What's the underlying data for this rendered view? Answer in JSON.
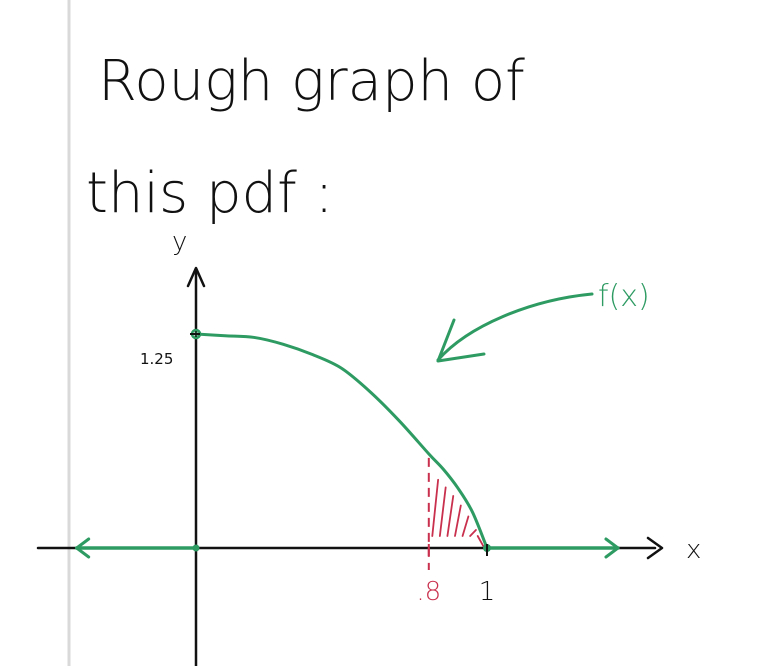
{
  "note": {
    "line1": "Rough graph of",
    "line2": "this pdf :"
  },
  "colors": {
    "ink": "#111111",
    "curve": "#2e9b63",
    "shade": "#c9304d",
    "margin_line": "#d9d9d9"
  },
  "chart_data": {
    "type": "line",
    "title": "",
    "xlabel": "x",
    "ylabel": "y",
    "xlim": [
      -0.61,
      1.6
    ],
    "ylim": [
      0,
      1.36
    ],
    "series": [
      {
        "name": "f(x)",
        "x": [
          0,
          0.1,
          0.2,
          0.3,
          0.4,
          0.5,
          0.6,
          0.7,
          0.8,
          0.85,
          0.9,
          0.95,
          1.0
        ],
        "y": [
          1.25,
          1.24,
          1.23,
          1.19,
          1.13,
          1.05,
          0.91,
          0.74,
          0.55,
          0.46,
          0.35,
          0.21,
          0
        ]
      }
    ],
    "zero_left_x": [
      -0.41,
      0
    ],
    "zero_right_x": [
      1.0,
      1.45
    ],
    "shaded_region": {
      "from": 0.8,
      "to": 1.0
    },
    "y_tick": {
      "value": 1.25,
      "label": "1.25"
    },
    "x_ticks": [
      {
        "value": 0.8,
        "label": ".8",
        "color": "#c9304d"
      },
      {
        "value": 1,
        "label": "1",
        "color": "#111111"
      }
    ],
    "curve_label": "f(x)"
  }
}
